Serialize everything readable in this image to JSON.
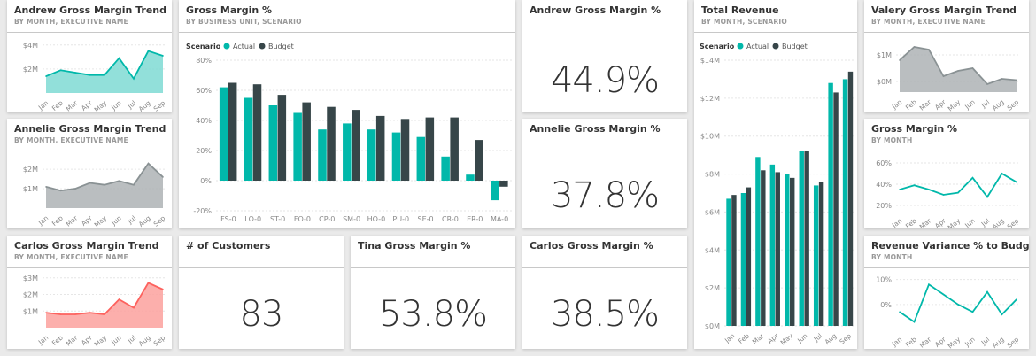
{
  "colors": {
    "teal": "#01b8aa",
    "dark": "#374649",
    "red": "#fd625e",
    "grey": "#8a9294",
    "area_teal": "#7fdbd4",
    "area_grey": "#aeb3b5",
    "area_red": "#fca19e",
    "grid": "#e6e6e6"
  },
  "tiles": {
    "andrew_trend": {
      "title": "Andrew Gross Margin Trend",
      "subtitle": "BY MONTH, EXECUTIVE NAME"
    },
    "annelie_trend": {
      "title": "Annelie Gross Margin Trend",
      "subtitle": "BY MONTH, EXECUTIVE NAME"
    },
    "carlos_trend": {
      "title": "Carlos Gross Margin Trend",
      "subtitle": "BY MONTH, EXECUTIVE NAME"
    },
    "gm_by_bu": {
      "title": "Gross Margin %",
      "subtitle": "BY BUSINESS UNIT, SCENARIO"
    },
    "andrew_gm": {
      "title": "Andrew Gross Margin %",
      "value": "44.9%"
    },
    "annelie_gm": {
      "title": "Annelie Gross Margin %",
      "value": "37.8%"
    },
    "customers": {
      "title": "# of Customers",
      "value": "83"
    },
    "tina_gm": {
      "title": "Tina Gross Margin %",
      "value": "53.8%"
    },
    "carlos_gm": {
      "title": "Carlos Gross Margin %",
      "value": "38.5%"
    },
    "total_revenue": {
      "title": "Total Revenue",
      "subtitle": "BY MONTH, SCENARIO"
    },
    "valery_trend": {
      "title": "Valery Gross Margin Trend",
      "subtitle": "BY MONTH, EXECUTIVE NAME"
    },
    "gm_by_month": {
      "title": "Gross Margin %",
      "subtitle": "BY MONTH"
    },
    "rev_variance": {
      "title": "Revenue Variance % to Budget",
      "subtitle": "BY MONTH"
    }
  },
  "chart_data": [
    {
      "id": "andrew_trend",
      "type": "area",
      "x": [
        "Jan",
        "Feb",
        "Mar",
        "Apr",
        "May",
        "Jun",
        "Jul",
        "Aug",
        "Sep"
      ],
      "values": [
        1.4,
        1.9,
        1.7,
        1.5,
        1.5,
        2.9,
        1.2,
        3.5,
        3.1
      ],
      "ylim": [
        0,
        4.5
      ],
      "yticks": [
        2,
        4
      ],
      "yticklabels": [
        "$2M",
        "$4M"
      ],
      "color": "teal"
    },
    {
      "id": "annelie_trend",
      "type": "area",
      "x": [
        "Jan",
        "Feb",
        "Mar",
        "Apr",
        "May",
        "Jun",
        "Jul",
        "Aug",
        "Sep"
      ],
      "values": [
        1.1,
        0.9,
        1.0,
        1.3,
        1.2,
        1.4,
        1.2,
        2.3,
        1.6
      ],
      "ylim": [
        0,
        2.6
      ],
      "yticks": [
        1,
        2
      ],
      "yticklabels": [
        "$1M",
        "$2M"
      ],
      "color": "grey"
    },
    {
      "id": "carlos_trend",
      "type": "area",
      "x": [
        "Jan",
        "Feb",
        "Mar",
        "Apr",
        "May",
        "Jun",
        "Jul",
        "Aug",
        "Sep"
      ],
      "values": [
        0.9,
        0.8,
        0.8,
        0.9,
        0.8,
        1.7,
        1.2,
        2.7,
        2.3
      ],
      "ylim": [
        0,
        3.2
      ],
      "yticks": [
        1,
        2,
        3
      ],
      "yticklabels": [
        "$1M",
        "$2M",
        "$3M"
      ],
      "color": "red"
    },
    {
      "id": "gm_by_bu",
      "type": "bar",
      "legend_title": "Scenario",
      "categories": [
        "FS-0",
        "LO-0",
        "ST-0",
        "FO-0",
        "CP-0",
        "SM-0",
        "HO-0",
        "PU-0",
        "SE-0",
        "CR-0",
        "ER-0",
        "MA-0"
      ],
      "series": [
        {
          "name": "Actual",
          "color": "teal",
          "values": [
            62,
            55,
            50,
            45,
            34,
            38,
            34,
            32,
            29,
            16,
            4,
            -13
          ]
        },
        {
          "name": "Budget",
          "color": "dark",
          "values": [
            65,
            64,
            57,
            52,
            49,
            47,
            43,
            41,
            42,
            42,
            27,
            -4
          ]
        }
      ],
      "ylim": [
        -20,
        80
      ],
      "yticks": [
        -20,
        0,
        20,
        40,
        60,
        80
      ],
      "yticklabels": [
        "-20%",
        "0%",
        "20%",
        "40%",
        "60%",
        "80%"
      ]
    },
    {
      "id": "total_revenue",
      "type": "bar",
      "legend_title": "Scenario",
      "categories": [
        "Jan",
        "Feb",
        "Mar",
        "Apr",
        "May",
        "Jun",
        "Jul",
        "Aug",
        "Sep"
      ],
      "series": [
        {
          "name": "Actual",
          "color": "teal",
          "values": [
            6.7,
            7.0,
            8.9,
            8.5,
            8.0,
            9.2,
            7.4,
            12.8,
            13.0
          ],
          "extra": [
            6.9,
            7.3
          ]
        },
        {
          "name": "Budget",
          "color": "dark",
          "values": [
            6.9,
            7.3,
            8.2,
            8.1,
            7.8,
            9.2,
            7.6,
            12.3,
            13.4
          ]
        }
      ],
      "ylim": [
        0,
        14
      ],
      "yticks": [
        0,
        2,
        4,
        6,
        8,
        10,
        12,
        14
      ],
      "yticklabels": [
        "$0M",
        "$2M",
        "$4M",
        "$6M",
        "$8M",
        "$10M",
        "$12M",
        "$14M"
      ]
    },
    {
      "id": "valery_trend",
      "type": "area",
      "x": [
        "Jan",
        "Feb",
        "Mar",
        "Apr",
        "May",
        "Jun",
        "Jul",
        "Aug",
        "Sep"
      ],
      "values": [
        0.8,
        1.3,
        1.2,
        0.2,
        0.4,
        0.5,
        -0.1,
        0.1,
        0.05
      ],
      "ylim": [
        -0.4,
        1.6
      ],
      "yticks": [
        0,
        1
      ],
      "yticklabels": [
        "$0M",
        "$1M"
      ],
      "color": "grey"
    },
    {
      "id": "gm_by_month",
      "type": "line",
      "x": [
        "Jan",
        "Feb",
        "Mar",
        "Apr",
        "May",
        "Jun",
        "Jul",
        "Aug",
        "Sep"
      ],
      "values": [
        35,
        39,
        35,
        30,
        32,
        46,
        28,
        50,
        42
      ],
      "ylim": [
        15,
        65
      ],
      "yticks": [
        20,
        40,
        60
      ],
      "yticklabels": [
        "20%",
        "40%",
        "60%"
      ],
      "color": "teal"
    },
    {
      "id": "rev_variance",
      "type": "line",
      "x": [
        "Jan",
        "Feb",
        "Mar",
        "Apr",
        "May",
        "Jun",
        "Jul",
        "Aug",
        "Sep"
      ],
      "values": [
        -3,
        -7,
        8,
        4,
        0,
        -3,
        5,
        -4,
        2
      ],
      "ylim": [
        -10,
        12
      ],
      "yticks": [
        0,
        10
      ],
      "yticklabels": [
        "0%",
        "10%"
      ],
      "color": "teal",
      "note": "approximate"
    }
  ]
}
